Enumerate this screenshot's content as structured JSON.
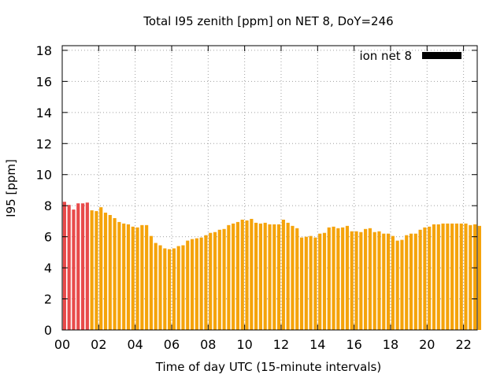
{
  "chart_data": {
    "type": "bar",
    "title": "Total I95 zenith [ppm] on NET 8, DoY=246",
    "xlabel": "Time of day UTC (15-minute intervals)",
    "ylabel": "I95 [ppm]",
    "ylim": [
      0,
      18.3
    ],
    "xlim": [
      0,
      22.75
    ],
    "yticks": [
      0,
      2,
      4,
      6,
      8,
      10,
      12,
      14,
      16,
      18
    ],
    "xticks": [
      0,
      2,
      4,
      6,
      8,
      10,
      12,
      14,
      16,
      18,
      20,
      22
    ],
    "xtick_labels": [
      "00",
      "02",
      "04",
      "06",
      "08",
      "10",
      "12",
      "14",
      "16",
      "18",
      "20",
      "22"
    ],
    "grid": true,
    "legend_position": "top-right",
    "series": [
      {
        "name": "ion net 8",
        "legend_color": "#000000",
        "interval_hours": 0.25,
        "values": [
          8.25,
          8.05,
          7.75,
          8.15,
          8.15,
          8.2,
          7.7,
          7.65,
          7.9,
          7.55,
          7.4,
          7.2,
          6.95,
          6.85,
          6.8,
          6.65,
          6.6,
          6.75,
          6.75,
          6.05,
          5.6,
          5.45,
          5.25,
          5.2,
          5.25,
          5.4,
          5.45,
          5.75,
          5.85,
          5.9,
          5.95,
          6.1,
          6.25,
          6.3,
          6.45,
          6.5,
          6.75,
          6.85,
          6.95,
          7.1,
          7.05,
          7.15,
          6.9,
          6.85,
          6.9,
          6.8,
          6.8,
          6.8,
          7.1,
          6.9,
          6.7,
          6.55,
          5.95,
          6.0,
          6.05,
          5.95,
          6.2,
          6.25,
          6.6,
          6.65,
          6.55,
          6.6,
          6.7,
          6.35,
          6.35,
          6.3,
          6.5,
          6.55,
          6.3,
          6.35,
          6.2,
          6.2,
          6.05,
          5.75,
          5.8,
          6.1,
          6.2,
          6.2,
          6.45,
          6.6,
          6.65,
          6.8,
          6.8,
          6.85,
          6.85,
          6.85,
          6.85,
          6.85,
          6.85,
          6.75,
          6.8,
          6.7
        ],
        "colors": {
          "flagged": "#e84a4a",
          "normal": "#f5a30a"
        },
        "flagged_count": 6
      }
    ]
  }
}
